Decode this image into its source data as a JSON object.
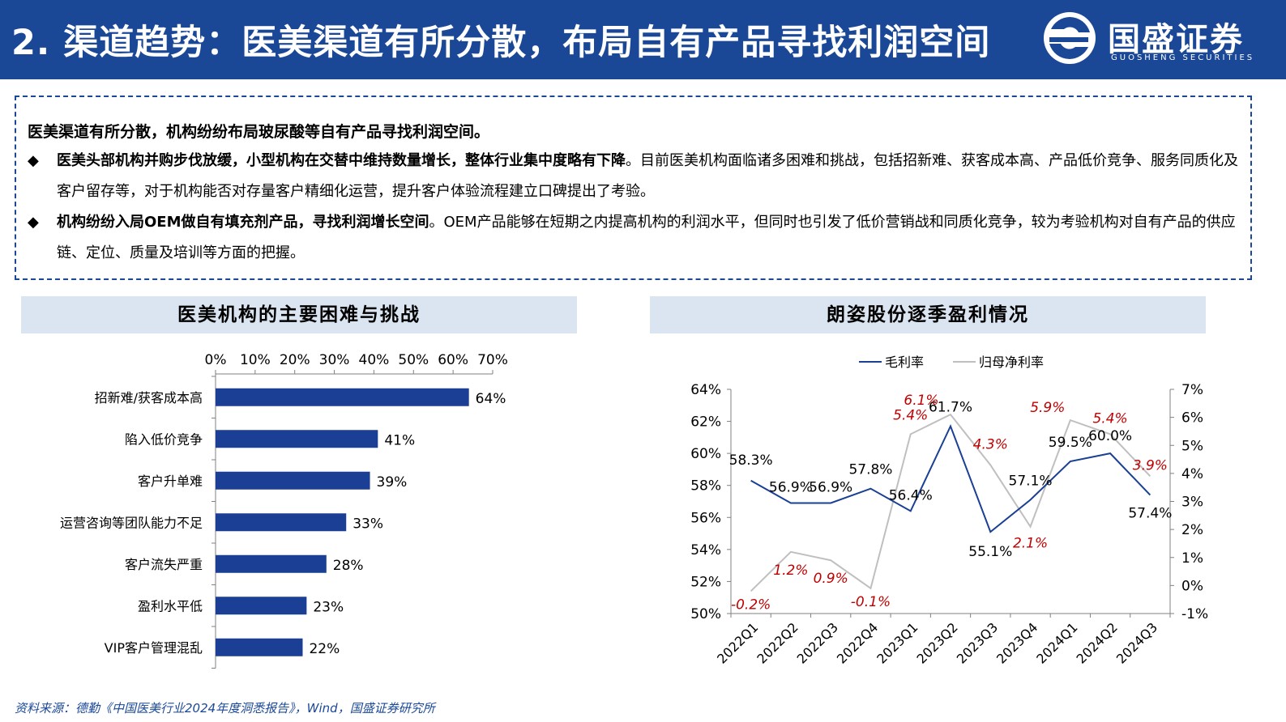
{
  "header": {
    "title": "2. 渠道趋势：医美渠道有所分散，布局自有产品寻找利润空间",
    "logo_text": "国盛证券",
    "logo_sub": "GUOSHENG SECURITIES"
  },
  "summary": {
    "lead": "医美渠道有所分散，机构纷纷布局玻尿酸等自有产品寻找利润空间。",
    "bullets": [
      {
        "mark": "◆",
        "bold": "医美头部机构并购步伐放缓，小型机构在交替中维持数量增长，整体行业集中度略有下降",
        "text": "。目前医美机构面临诸多困难和挑战，包括招新难、获客成本高、产品低价竞争、服务同质化及客户留存等，对于机构能否对存量客户精细化运营，提升客户体验流程建立口碑提出了考验。"
      },
      {
        "mark": "◆",
        "bold": "机构纷纷入局OEM做自有填充剂产品，寻找利润增长空间",
        "text": "。OEM产品能够在短期之内提高机构的利润水平，但同时也引发了低价营销战和同质化竞争，较为考验机构对自有产品的供应链、定位、质量及培训等方面的把握。"
      }
    ]
  },
  "left_panel": {
    "title": "医美机构的主要困难与挑战"
  },
  "right_panel": {
    "title": "朗姿股份逐季盈利情况"
  },
  "chart_data": [
    {
      "type": "bar",
      "orientation": "horizontal",
      "categories": [
        "招新难/获客成本高",
        "陷入低价竞争",
        "客户升单难",
        "运营咨询等团队能力不足",
        "客户流失严重",
        "盈利水平低",
        "VIP客户管理混乱"
      ],
      "values": [
        64,
        41,
        39,
        33,
        28,
        23,
        22
      ],
      "value_labels": [
        "64%",
        "41%",
        "39%",
        "33%",
        "28%",
        "23%",
        "22%"
      ],
      "xlim": [
        0,
        70
      ],
      "x_ticks": [
        "0%",
        "10%",
        "20%",
        "30%",
        "40%",
        "50%",
        "60%",
        "70%"
      ],
      "x_axis_position": "top",
      "bar_color": "#1a3f94"
    },
    {
      "type": "line",
      "x": [
        "2022Q1",
        "2022Q2",
        "2022Q3",
        "2022Q4",
        "2023Q1",
        "2023Q2",
        "2023Q3",
        "2023Q4",
        "2024Q1",
        "2024Q2",
        "2024Q3"
      ],
      "series": [
        {
          "name": "毛利率",
          "axis": "left",
          "color": "#1a3f94",
          "values": [
            58.3,
            56.9,
            56.9,
            57.8,
            56.4,
            61.7,
            55.1,
            57.1,
            59.5,
            60.0,
            57.4
          ],
          "labels": [
            "58.3%",
            "56.9%",
            "56.9%",
            "57.8%",
            "56.4%",
            "61.7%",
            "55.1%",
            "57.1%",
            "59.5%",
            "60.0%",
            "57.4%"
          ]
        },
        {
          "name": "归母净利率",
          "axis": "right",
          "color": "#bfbfbf",
          "label_color": "#c00000",
          "values": [
            -0.2,
            1.2,
            0.9,
            -0.1,
            5.4,
            6.1,
            4.3,
            2.1,
            5.9,
            5.4,
            3.9
          ],
          "labels": [
            "-0.2%",
            "1.2%",
            "0.9%",
            "-0.1%",
            "5.4%",
            "6.1%",
            "4.3%",
            "2.1%",
            "5.9%",
            "5.4%",
            "3.9%"
          ]
        }
      ],
      "ylim_left": [
        50,
        64
      ],
      "y_ticks_left": [
        "50%",
        "52%",
        "54%",
        "56%",
        "58%",
        "60%",
        "62%",
        "64%"
      ],
      "ylim_right": [
        -1,
        7
      ],
      "y_ticks_right": [
        "-1%",
        "0%",
        "1%",
        "2%",
        "3%",
        "4%",
        "5%",
        "6%",
        "7%"
      ],
      "legend_position": "top"
    }
  ],
  "source": "资料来源：德勤《中国医美行业2024年度洞悉报告》，Wind，国盛证券研究所"
}
